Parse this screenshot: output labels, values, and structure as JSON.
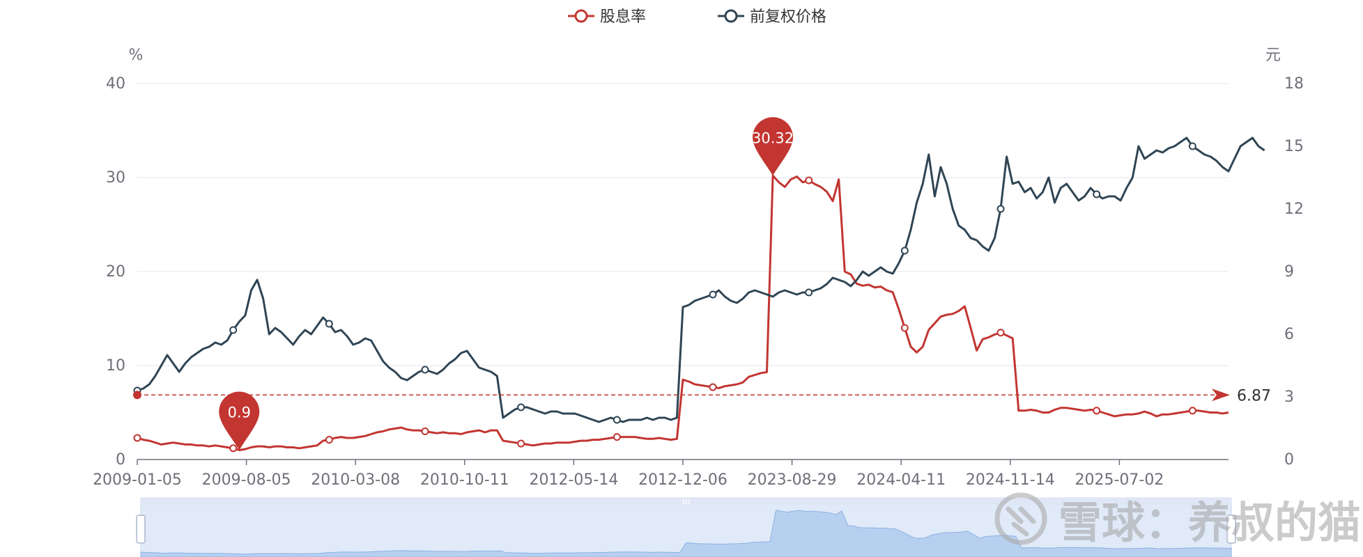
{
  "chart_data": {
    "type": "line",
    "title": "",
    "legend": {
      "placement": "top-center",
      "entries": [
        "股息率",
        "前复权价格"
      ]
    },
    "y_left": {
      "unit": "%",
      "min": 0,
      "max": 40,
      "ticks": [
        "0",
        "10",
        "20",
        "30",
        "40"
      ]
    },
    "y_right": {
      "unit": "元",
      "min": 0,
      "max": 18,
      "ticks": [
        "0",
        "3",
        "6",
        "9",
        "12",
        "15",
        "18"
      ]
    },
    "x_tick_labels": [
      "2009-01-05",
      "2009-08-05",
      "2010-03-08",
      "2010-10-11",
      "2012-05-14",
      "2012-12-06",
      "2023-08-29",
      "2024-04-11",
      "2024-11-14",
      "2025-07-02"
    ],
    "grid": true,
    "series": [
      {
        "name": "股息率",
        "axis": "left",
        "color": "#c23531",
        "values": [
          2.3,
          2.1,
          2.0,
          1.8,
          1.6,
          1.7,
          1.8,
          1.7,
          1.6,
          1.6,
          1.5,
          1.5,
          1.4,
          1.5,
          1.4,
          1.3,
          1.2,
          1.0,
          1.1,
          1.3,
          1.4,
          1.4,
          1.3,
          1.4,
          1.4,
          1.3,
          1.3,
          1.2,
          1.3,
          1.4,
          1.5,
          2.0,
          2.1,
          2.3,
          2.4,
          2.3,
          2.3,
          2.4,
          2.5,
          2.7,
          2.9,
          3.0,
          3.2,
          3.3,
          3.4,
          3.2,
          3.1,
          3.1,
          3.0,
          2.9,
          2.8,
          2.9,
          2.8,
          2.8,
          2.7,
          2.9,
          3.0,
          3.1,
          2.9,
          3.1,
          3.1,
          2.0,
          1.9,
          1.8,
          1.7,
          1.6,
          1.5,
          1.6,
          1.7,
          1.7,
          1.8,
          1.8,
          1.8,
          1.9,
          2.0,
          2.0,
          2.1,
          2.1,
          2.2,
          2.3,
          2.4,
          2.4,
          2.4,
          2.4,
          2.3,
          2.2,
          2.2,
          2.3,
          2.2,
          2.1,
          2.2,
          8.5,
          8.3,
          8.0,
          7.9,
          7.8,
          7.7,
          7.6,
          7.8,
          7.9,
          8.0,
          8.2,
          8.8,
          9.0,
          9.2,
          9.3,
          30.2,
          29.5,
          29.0,
          29.8,
          30.1,
          29.5,
          29.7,
          29.3,
          29.0,
          28.5,
          27.5,
          29.8,
          20.0,
          19.7,
          18.7,
          18.5,
          18.6,
          18.3,
          18.4,
          18.0,
          17.8,
          16.0,
          14.0,
          12.0,
          11.4,
          12.0,
          13.8,
          14.5,
          15.2,
          15.4,
          15.5,
          15.8,
          16.3,
          14.0,
          11.6,
          12.8,
          13.0,
          13.3,
          13.5,
          13.2,
          12.9,
          5.2,
          5.2,
          5.3,
          5.2,
          5.0,
          5.0,
          5.3,
          5.5,
          5.5,
          5.4,
          5.3,
          5.2,
          5.3,
          5.2,
          5.0,
          4.8,
          4.6,
          4.7,
          4.8,
          4.8,
          4.9,
          5.1,
          4.9,
          4.6,
          4.8,
          4.8,
          4.9,
          5.0,
          5.1,
          5.2,
          5.2,
          5.1,
          5.0,
          5.0,
          4.9,
          5.0
        ],
        "markers": [
          {
            "label": "0.9",
            "type": "min",
            "value": 0.9,
            "x": "2009-08-05"
          },
          {
            "label": "30.32",
            "type": "max",
            "value": 30.32
          }
        ],
        "mark_line": {
          "value": 6.87,
          "label": "6.87"
        }
      },
      {
        "name": "前复权价格",
        "axis": "right",
        "color": "#2f4554",
        "values": [
          3.3,
          3.4,
          3.6,
          4.0,
          4.5,
          5.0,
          4.6,
          4.2,
          4.6,
          4.9,
          5.1,
          5.3,
          5.4,
          5.6,
          5.5,
          5.7,
          6.2,
          6.6,
          6.9,
          8.1,
          8.6,
          7.7,
          6.0,
          6.3,
          6.1,
          5.8,
          5.5,
          5.9,
          6.2,
          6.0,
          6.4,
          6.8,
          6.5,
          6.1,
          6.2,
          5.9,
          5.5,
          5.6,
          5.8,
          5.7,
          5.2,
          4.7,
          4.4,
          4.2,
          3.9,
          3.8,
          4.0,
          4.2,
          4.3,
          4.2,
          4.1,
          4.3,
          4.6,
          4.8,
          5.1,
          5.2,
          4.8,
          4.4,
          4.3,
          4.2,
          4.0,
          2.0,
          2.2,
          2.4,
          2.5,
          2.5,
          2.4,
          2.3,
          2.2,
          2.3,
          2.3,
          2.2,
          2.2,
          2.2,
          2.1,
          2.0,
          1.9,
          1.8,
          1.9,
          2.0,
          1.9,
          1.8,
          1.9,
          1.9,
          1.9,
          2.0,
          1.9,
          2.0,
          2.0,
          1.9,
          2.0,
          7.3,
          7.4,
          7.6,
          7.7,
          7.8,
          7.9,
          8.1,
          7.8,
          7.6,
          7.5,
          7.7,
          8.0,
          8.1,
          8.0,
          7.9,
          7.8,
          8.0,
          8.1,
          8.0,
          7.9,
          8.0,
          8.0,
          8.1,
          8.2,
          8.4,
          8.7,
          8.6,
          8.5,
          8.3,
          8.6,
          9.0,
          8.8,
          9.0,
          9.2,
          9.0,
          8.9,
          9.4,
          10.0,
          11.0,
          12.3,
          13.2,
          14.6,
          12.6,
          14.0,
          13.2,
          12.0,
          11.2,
          11.0,
          10.6,
          10.5,
          10.2,
          10.0,
          10.6,
          12.0,
          14.5,
          13.2,
          13.3,
          12.8,
          13.0,
          12.5,
          12.8,
          13.5,
          12.3,
          13.0,
          13.2,
          12.8,
          12.4,
          12.6,
          13.0,
          12.7,
          12.5,
          12.6,
          12.6,
          12.4,
          13.0,
          13.5,
          15.0,
          14.4,
          14.6,
          14.8,
          14.7,
          14.9,
          15.0,
          15.2,
          15.4,
          15.0,
          14.8,
          14.6,
          14.5,
          14.3,
          14.0,
          13.8,
          14.4,
          15.0,
          15.2,
          15.4,
          15.0,
          14.8
        ]
      }
    ],
    "data_zoom": {
      "start_percent": 0,
      "end_percent": 100
    }
  },
  "watermark": {
    "text": "雪球：养叔的猫"
  }
}
